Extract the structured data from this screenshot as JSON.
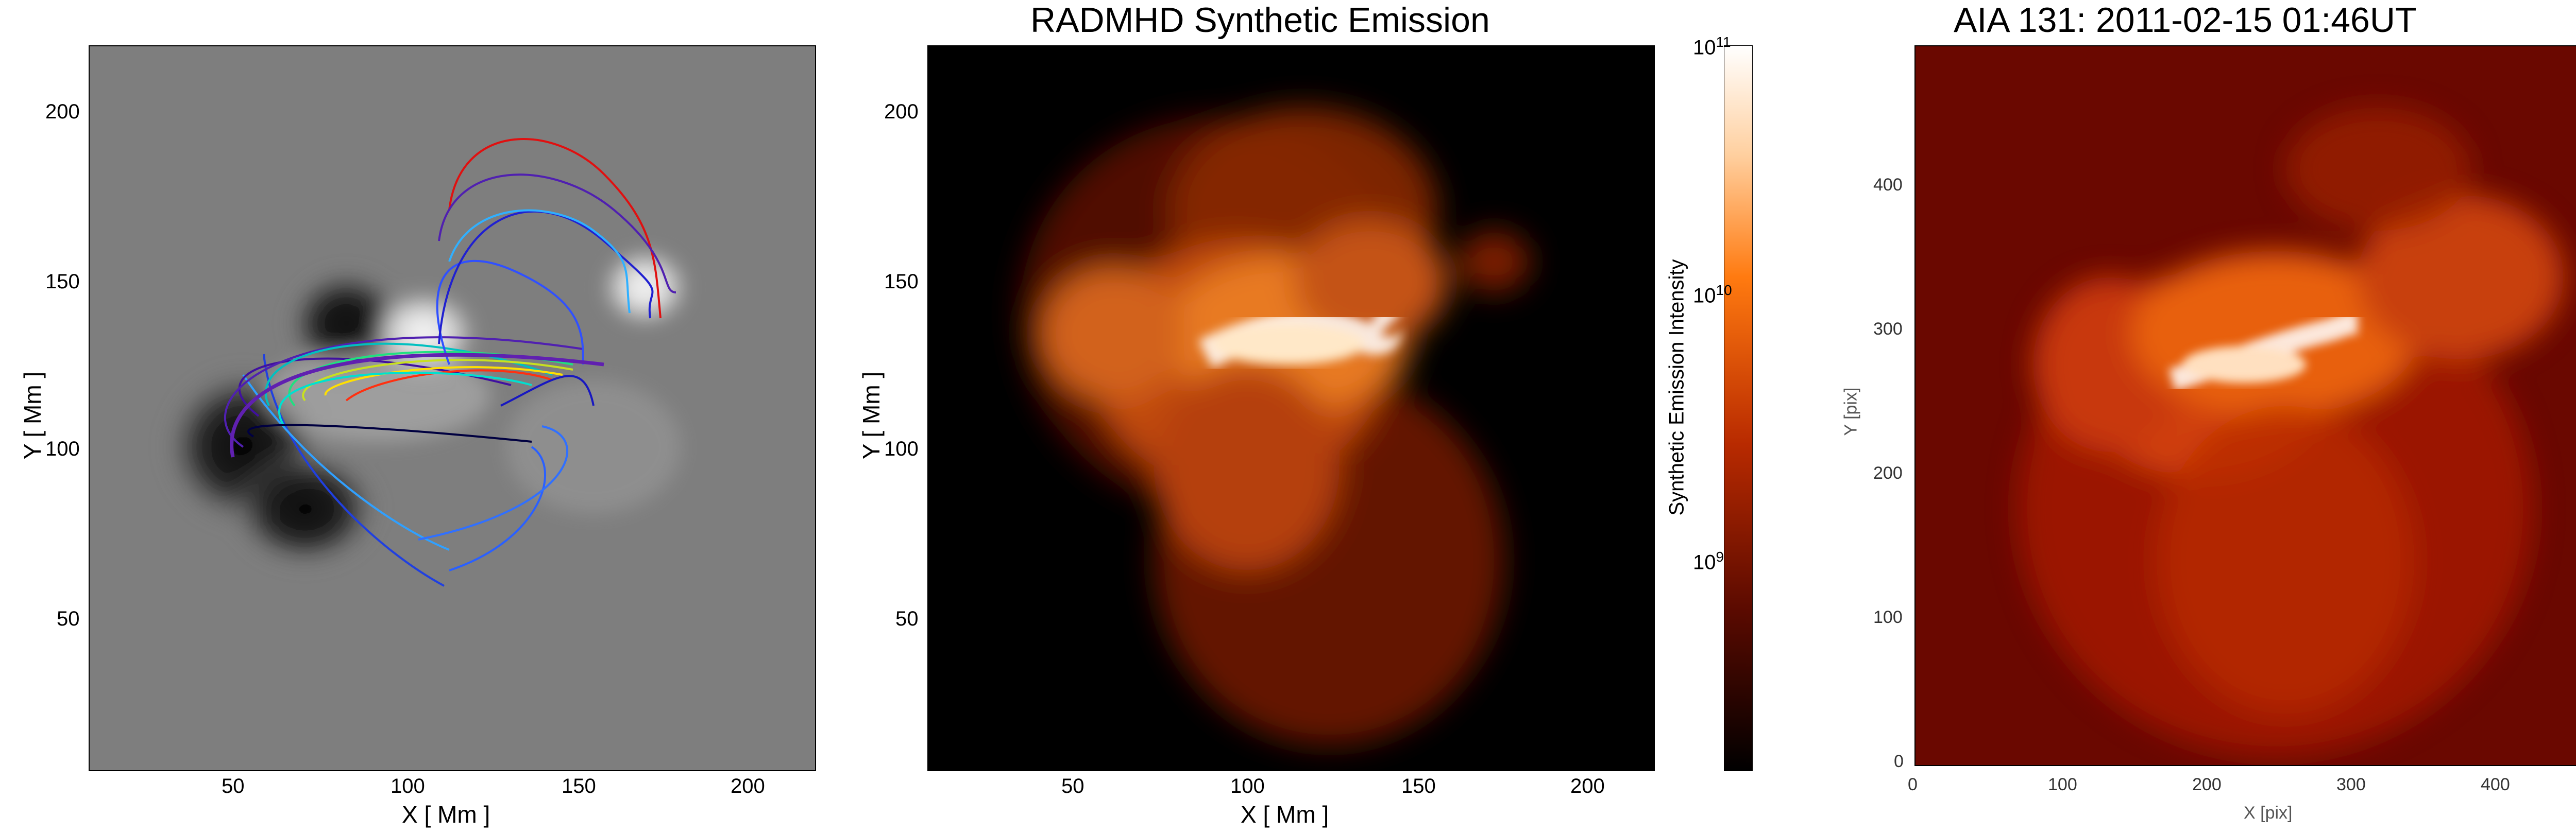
{
  "panel1": {
    "xlabel": "X  [ Mm ]",
    "ylabel": "Y  [ Mm ]",
    "xticks": [
      "50",
      "100",
      "150",
      "200"
    ],
    "yticks": [
      "50",
      "100",
      "150",
      "200"
    ]
  },
  "panel2": {
    "title": "RADMHD Synthetic Emission",
    "xlabel": "X  [ Mm ]",
    "ylabel": "Y  [ Mm ]",
    "xticks": [
      "50",
      "100",
      "150",
      "200"
    ],
    "yticks": [
      "50",
      "100",
      "150",
      "200"
    ]
  },
  "colorbar": {
    "label": "Synthetic Emission Intensity",
    "ticks": [
      "10",
      "10",
      "10"
    ],
    "exps": [
      "11",
      "10",
      "9"
    ]
  },
  "panel3": {
    "title": "AIA 131: 2011-02-15  01:46UT",
    "xlabel": "X  [pix]",
    "ylabel": "Y  [pix]",
    "xticks": [
      "0",
      "100",
      "200",
      "300",
      "400"
    ],
    "yticks": [
      "0",
      "100",
      "200",
      "300",
      "400"
    ]
  }
}
